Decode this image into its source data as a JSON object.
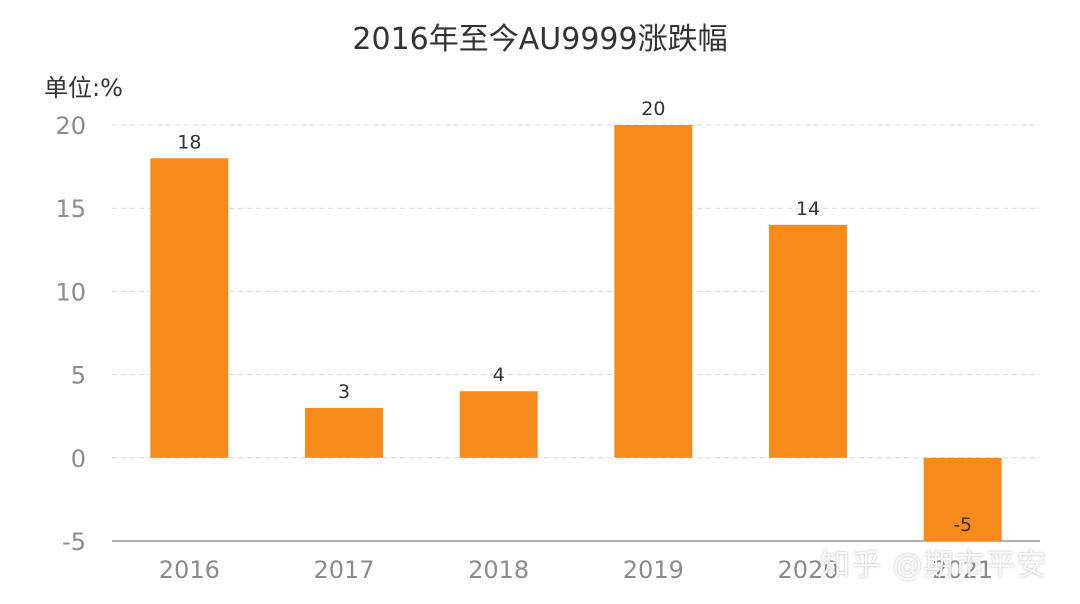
{
  "chart_data": {
    "type": "bar",
    "title": "2016年至今AU9999涨跌幅",
    "unit_label": "单位:%",
    "categories": [
      "2016",
      "2017",
      "2018",
      "2019",
      "2020",
      "2021"
    ],
    "values": [
      18,
      3,
      4,
      20,
      14,
      -5
    ],
    "data_labels": [
      "18",
      "3",
      "4",
      "20",
      "14",
      "-5"
    ],
    "yticks": [
      20,
      15,
      10,
      5,
      0,
      -5
    ],
    "ylim": [
      -5,
      20
    ],
    "grid": true,
    "bar_color": "#f98b1c"
  },
  "watermark": "知乎 @期市平安"
}
